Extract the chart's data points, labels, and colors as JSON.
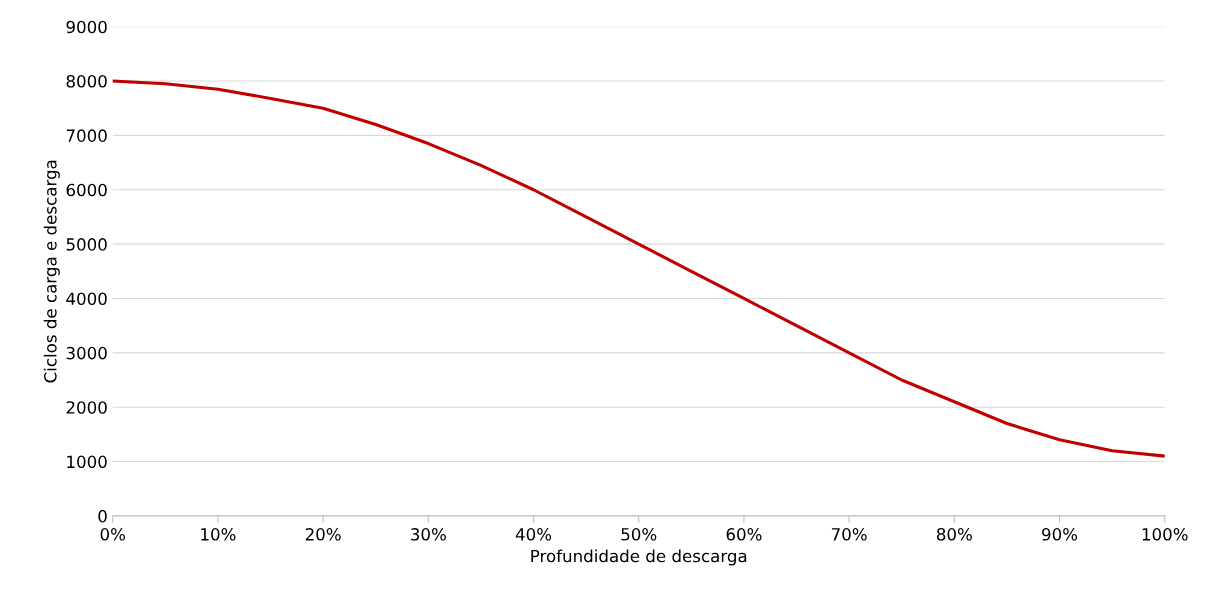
{
  "chart_data": {
    "type": "line",
    "xlabel": "Profundidade de descarga",
    "ylabel": "Ciclos de carga e descarga",
    "x": [
      0,
      5,
      10,
      15,
      20,
      25,
      30,
      35,
      40,
      45,
      50,
      55,
      60,
      65,
      70,
      75,
      80,
      85,
      90,
      95,
      100
    ],
    "series": [
      {
        "color": "#c00000",
        "values": [
          8000,
          7950,
          7850,
          7680,
          7500,
          7200,
          6850,
          6450,
          6000,
          5500,
          5000,
          4500,
          4000,
          3500,
          3000,
          2500,
          2100,
          1700,
          1400,
          1200,
          1100
        ]
      }
    ],
    "xlim": [
      0,
      100
    ],
    "xticks": [
      {
        "value": 0,
        "label": "0%"
      },
      {
        "value": 10,
        "label": "10%"
      },
      {
        "value": 20,
        "label": "20%"
      },
      {
        "value": 30,
        "label": "30%"
      },
      {
        "value": 40,
        "label": "40%"
      },
      {
        "value": 50,
        "label": "50%"
      },
      {
        "value": 60,
        "label": "60%"
      },
      {
        "value": 70,
        "label": "70%"
      },
      {
        "value": 80,
        "label": "80%"
      },
      {
        "value": 90,
        "label": "90%"
      },
      {
        "value": 100,
        "label": "100%"
      }
    ],
    "ylim": [
      0,
      9000
    ],
    "yticks": [
      0,
      1000,
      2000,
      3000,
      4000,
      5000,
      6000,
      7000,
      8000,
      9000
    ],
    "grid": "y",
    "marker": "none",
    "line_style": "solid"
  }
}
